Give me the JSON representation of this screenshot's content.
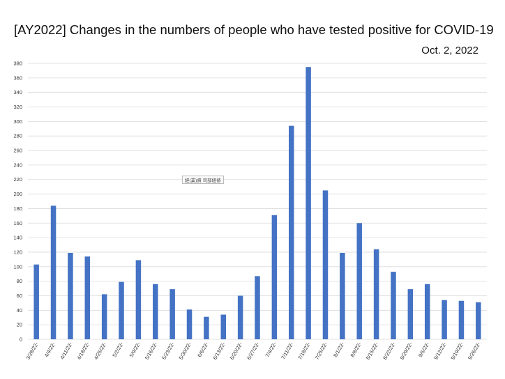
{
  "page_title": "[AY2022] Changes in the numbers of people who have tested positive for COVID-19",
  "date_label": "Oct. 2, 2022",
  "stamp_text": "経(業)資 司部経値",
  "colors": {
    "bar": "#4472c4",
    "grid": "#d9d9d9"
  },
  "chart_data": {
    "type": "bar",
    "title": "[AY2022] Changes in the numbers of people who have tested positive for COVID-19",
    "xlabel": "",
    "ylabel": "",
    "ylim": [
      0,
      380
    ],
    "ytick_step": 20,
    "grid": true,
    "categories": [
      "3/28/22-",
      "4/4/22-",
      "4/11/22-",
      "4/18/22-",
      "4/25/22-",
      "5/2/22-",
      "5/9/22-",
      "5/16/22-",
      "5/23/22-",
      "5/30/22-",
      "6/6/22-",
      "6/13/22-",
      "6/20/22-",
      "6/27/22-",
      "7/4/22-",
      "7/11/22-",
      "7/18/22-",
      "7/25/22-",
      "8/1/22-",
      "8/8/22-",
      "8/15/22-",
      "8/22/22-",
      "8/29/22-",
      "9/5/22-",
      "9/12/22-",
      "9/19/22-",
      "9/26/22-"
    ],
    "values": [
      103,
      184,
      119,
      114,
      62,
      79,
      109,
      76,
      69,
      41,
      31,
      34,
      60,
      87,
      171,
      294,
      375,
      205,
      119,
      160,
      124,
      93,
      69,
      76,
      54,
      53,
      51
    ]
  }
}
